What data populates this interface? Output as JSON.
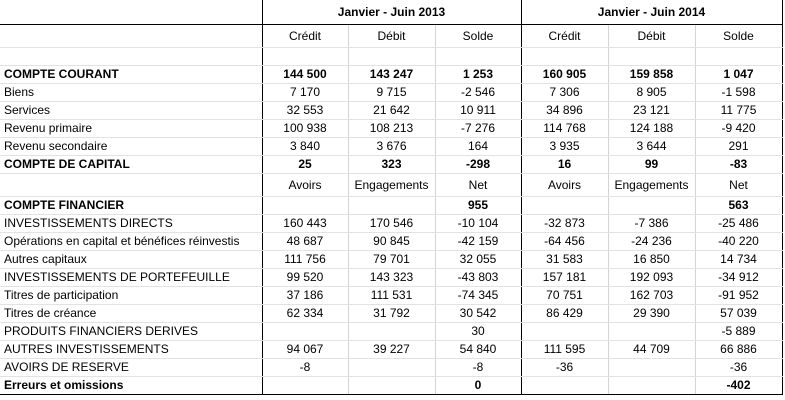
{
  "periods": [
    "Janvier - Juin  2013",
    "Janvier - Juin  2014"
  ],
  "col_headers_1": [
    "Crédit",
    "Débit",
    "Solde",
    "Crédit",
    "Débit",
    "Solde"
  ],
  "col_headers_2": [
    "Avoirs",
    "Engagements",
    "Net",
    "Avoirs",
    "Engagements",
    "Net"
  ],
  "rows": [
    {
      "label": "COMPTE COURANT",
      "bold": true,
      "v": [
        "144 500",
        "143 247",
        "1 253",
        "160 905",
        "159 858",
        "1 047"
      ]
    },
    {
      "label": "Biens",
      "bold": false,
      "v": [
        "7 170",
        "9 715",
        "-2 546",
        "7 306",
        "8 905",
        "-1 598"
      ]
    },
    {
      "label": "Services",
      "bold": false,
      "v": [
        "32 553",
        "21 642",
        "10 911",
        "34 896",
        "23 121",
        "11 775"
      ]
    },
    {
      "label": "Revenu primaire",
      "bold": false,
      "v": [
        "100 938",
        "108 213",
        "-7 276",
        "114 768",
        "124 188",
        "-9 420"
      ]
    },
    {
      "label": "Revenu secondaire",
      "bold": false,
      "v": [
        "3 840",
        "3 676",
        "164",
        "3 935",
        "3 644",
        "291"
      ]
    },
    {
      "label": "COMPTE DE CAPITAL",
      "bold": true,
      "v": [
        "25",
        "323",
        "-298",
        "16",
        "99",
        "-83"
      ]
    }
  ],
  "fin_header": {
    "label": "COMPTE FINANCIER",
    "net_2013": "955",
    "net_2014": "563"
  },
  "fin_rows": [
    {
      "label": "INVESTISSEMENTS DIRECTS",
      "bold": false,
      "v": [
        "160 443",
        "170 546",
        "-10 104",
        "-32 873",
        "-7 386",
        "-25 486"
      ]
    },
    {
      "label": "Opérations en capital et bénéfices réinvestis",
      "bold": false,
      "v": [
        "48 687",
        "90 845",
        "-42 159",
        "-64 456",
        "-24 236",
        "-40 220"
      ]
    },
    {
      "label": "Autres capitaux",
      "bold": false,
      "v": [
        "111 756",
        "79 701",
        "32 055",
        "31 583",
        "16 850",
        "14 734"
      ]
    },
    {
      "label": "INVESTISSEMENTS DE PORTEFEUILLE",
      "bold": false,
      "v": [
        "99 520",
        "143 323",
        "-43 803",
        "157 181",
        "192 093",
        "-34 912"
      ]
    },
    {
      "label": "Titres de participation",
      "bold": false,
      "v": [
        "37 186",
        "111 531",
        "-74 345",
        "70 751",
        "162 703",
        "-91 952"
      ]
    },
    {
      "label": "Titres de créance",
      "bold": false,
      "v": [
        "62 334",
        "31 792",
        "30 542",
        "86 429",
        "29 390",
        "57 039"
      ]
    },
    {
      "label": "PRODUITS FINANCIERS DERIVES",
      "bold": false,
      "v": [
        "",
        "",
        "30",
        "",
        "",
        "-5 889"
      ]
    },
    {
      "label": "AUTRES INVESTISSEMENTS",
      "bold": false,
      "v": [
        "94 067",
        "39 227",
        "54 840",
        "111 595",
        "44 709",
        "66 886"
      ]
    },
    {
      "label": "AVOIRS DE RESERVE",
      "bold": false,
      "v": [
        "-8",
        "",
        "-8",
        "-36",
        "",
        "-36"
      ]
    },
    {
      "label": "Erreurs et omissions",
      "bold": true,
      "v": [
        "",
        "",
        "0",
        "",
        "",
        "-402"
      ]
    }
  ]
}
